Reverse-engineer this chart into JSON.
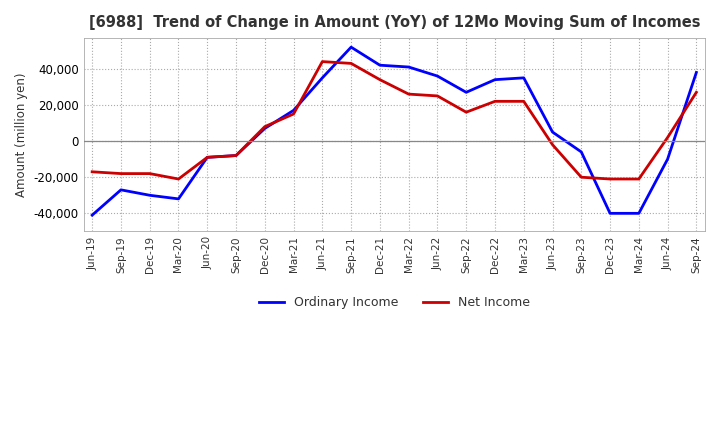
{
  "title": "[6988]  Trend of Change in Amount (YoY) of 12Mo Moving Sum of Incomes",
  "ylabel": "Amount (million yen)",
  "legend_labels": [
    "Ordinary Income",
    "Net Income"
  ],
  "line_colors": [
    "#0000FF",
    "#CC0000"
  ],
  "x_labels": [
    "Jun-19",
    "Sep-19",
    "Dec-19",
    "Mar-20",
    "Jun-20",
    "Sep-20",
    "Dec-20",
    "Mar-21",
    "Jun-21",
    "Sep-21",
    "Dec-21",
    "Mar-22",
    "Jun-22",
    "Sep-22",
    "Dec-22",
    "Mar-23",
    "Jun-23",
    "Sep-23",
    "Dec-23",
    "Mar-24",
    "Jun-24",
    "Sep-24"
  ],
  "ordinary_income": [
    -41000,
    -27000,
    -30000,
    -32000,
    -9000,
    -8000,
    7000,
    17000,
    35000,
    52000,
    42000,
    41000,
    36000,
    27000,
    34000,
    35000,
    5000,
    -6000,
    -40000,
    -40000,
    -10000,
    38000
  ],
  "net_income": [
    -17000,
    -18000,
    -18000,
    -21000,
    -9000,
    -8000,
    8000,
    15000,
    44000,
    43000,
    34000,
    26000,
    25000,
    16000,
    22000,
    22000,
    -2000,
    -20000,
    -21000,
    -21000,
    2000,
    27000
  ],
  "ylim": [
    -50000,
    57000
  ],
  "yticks": [
    -40000,
    -20000,
    0,
    20000,
    40000
  ],
  "background_color": "#ffffff",
  "grid_color": "#aaaaaa",
  "zero_line_color": "#888888",
  "title_color": "#333333"
}
